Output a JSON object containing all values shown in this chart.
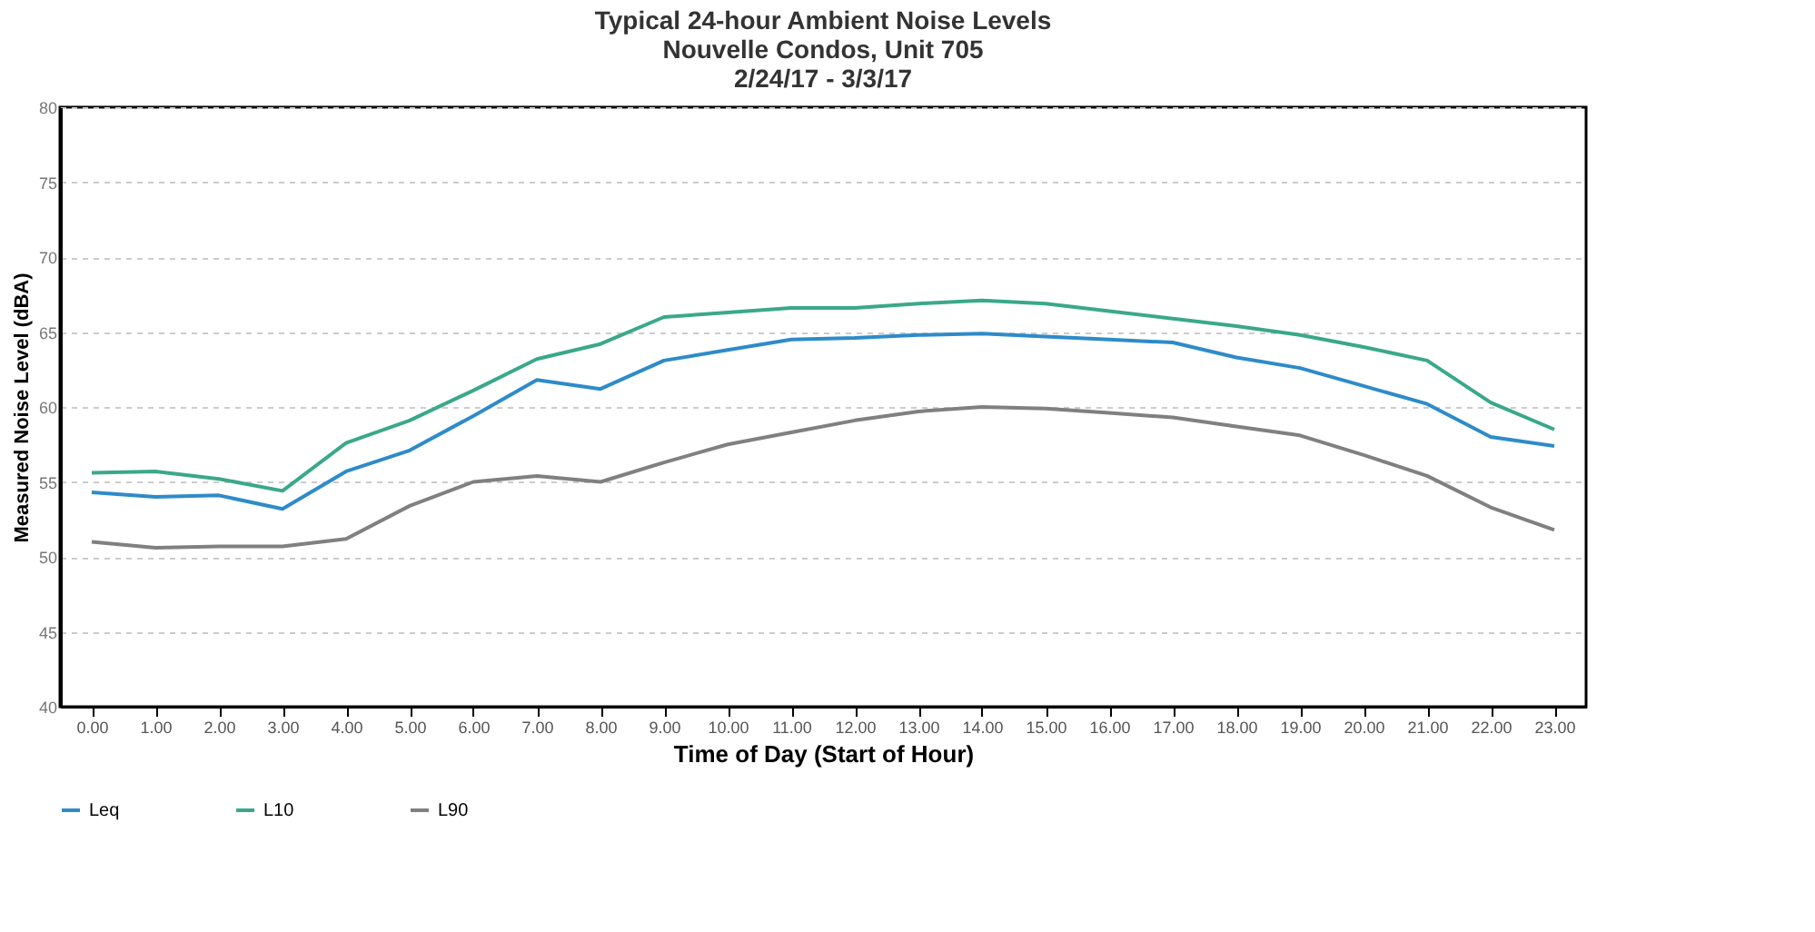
{
  "chart_data": {
    "type": "line",
    "title": [
      "Typical 24-hour Ambient Noise Levels",
      "Nouvelle Condos, Unit 705",
      "2/24/17 - 3/3/17"
    ],
    "xlabel": "Time of Day (Start of Hour)",
    "ylabel": "Measured Noise Level (dBA)",
    "categories": [
      "0.00",
      "1.00",
      "2.00",
      "3.00",
      "4.00",
      "5.00",
      "6.00",
      "7.00",
      "8.00",
      "9.00",
      "10.00",
      "11.00",
      "12.00",
      "13.00",
      "14.00",
      "15.00",
      "16.00",
      "17.00",
      "18.00",
      "19.00",
      "20.00",
      "21.00",
      "22.00",
      "23.00"
    ],
    "series": [
      {
        "name": "Leq",
        "color": "#2e8bc9",
        "values": [
          54.3,
          54.0,
          54.1,
          53.2,
          55.7,
          57.1,
          59.4,
          61.8,
          61.2,
          63.1,
          63.8,
          64.5,
          64.6,
          64.8,
          64.9,
          64.7,
          64.5,
          64.3,
          63.3,
          62.6,
          61.4,
          60.2,
          58.0,
          57.4
        ]
      },
      {
        "name": "L10",
        "color": "#3aa88a",
        "values": [
          55.6,
          55.7,
          55.2,
          54.4,
          57.6,
          59.1,
          61.1,
          63.2,
          64.2,
          66.0,
          66.3,
          66.6,
          66.6,
          66.9,
          67.1,
          66.9,
          66.4,
          65.9,
          65.4,
          64.8,
          64.0,
          63.1,
          60.3,
          58.5
        ]
      },
      {
        "name": "L90",
        "color": "#808080",
        "values": [
          51.0,
          50.6,
          50.7,
          50.7,
          51.2,
          53.4,
          55.0,
          55.4,
          55.0,
          56.3,
          57.5,
          58.3,
          59.1,
          59.7,
          60.0,
          59.9,
          59.6,
          59.3,
          58.7,
          58.1,
          56.8,
          55.4,
          53.3,
          51.8
        ]
      }
    ],
    "ylim": [
      40,
      80
    ],
    "yticks": [
      40,
      45,
      50,
      55,
      60,
      65,
      70,
      75,
      80
    ],
    "grid": "y",
    "legend": "bottom",
    "marker": "none",
    "line_style": "solid"
  }
}
